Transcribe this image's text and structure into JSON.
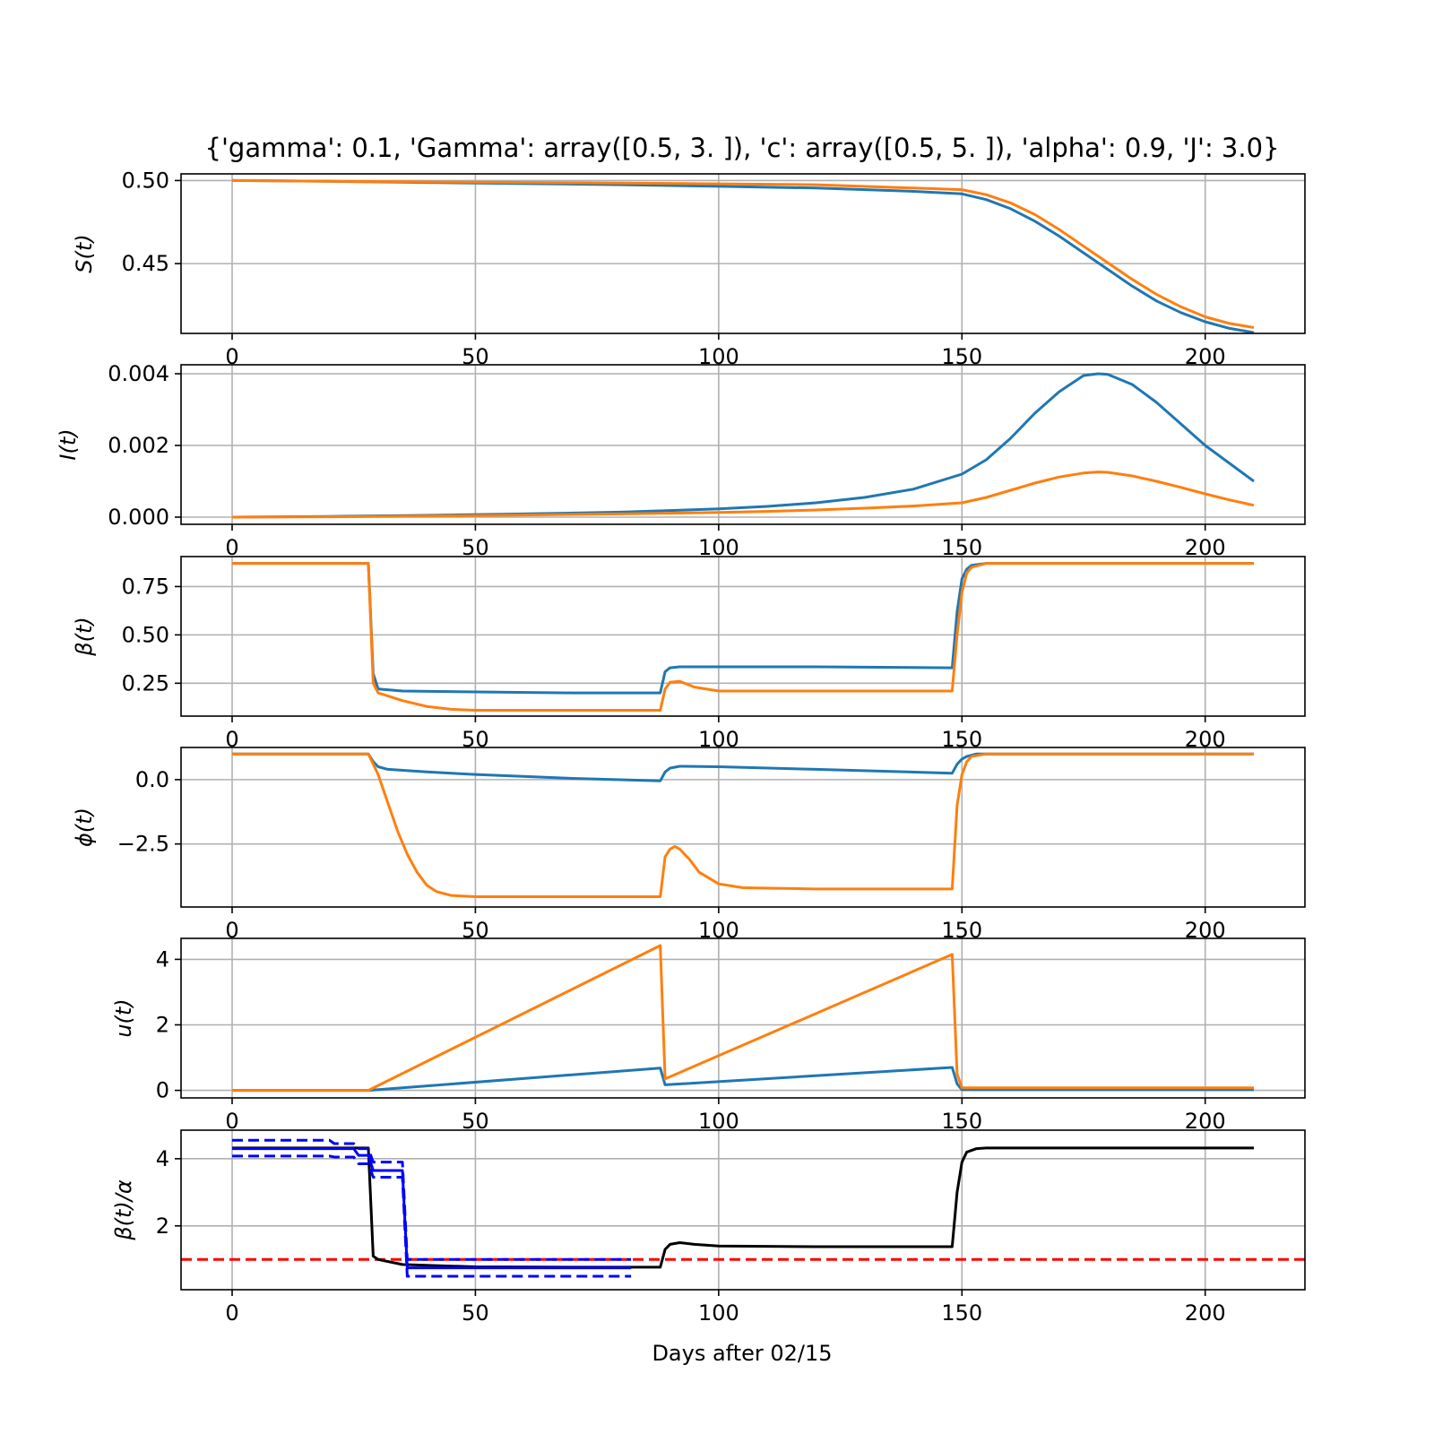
{
  "title": "{'gamma': 0.1, 'Gamma': array([0.5, 3. ]), 'c': array([0.5, 5. ]), 'alpha': 0.9, 'J': 3.0}",
  "xlabel": "Days after 02/15",
  "colors": {
    "blue": "#1f77b4",
    "orange": "#ff7f0e",
    "black": "#000000",
    "band": "#0000ff",
    "threshold": "#ff0000",
    "grid": "#b0b0b0"
  },
  "chart_data": [
    {
      "type": "line",
      "ylabel": "S(t)",
      "ylim": [
        0.408,
        0.504
      ],
      "xlim": [
        -10.5,
        220.5
      ],
      "xticks": [
        0,
        50,
        100,
        150,
        200
      ],
      "xtick_labels": [
        "0",
        "50",
        "100",
        "150",
        "200"
      ],
      "yticks": [
        0.45,
        0.5
      ],
      "ytick_labels": [
        "0.45",
        "0.50"
      ],
      "grid": true,
      "series": [
        {
          "color": "blue",
          "x": [
            0,
            20,
            50,
            80,
            100,
            120,
            140,
            150,
            155,
            160,
            165,
            170,
            175,
            180,
            185,
            190,
            195,
            200,
            205,
            210
          ],
          "y": [
            0.5,
            0.4995,
            0.4985,
            0.4975,
            0.4965,
            0.4955,
            0.4935,
            0.492,
            0.4885,
            0.483,
            0.4755,
            0.4665,
            0.4565,
            0.4465,
            0.4365,
            0.4275,
            0.4205,
            0.415,
            0.411,
            0.4085
          ]
        },
        {
          "color": "orange",
          "x": [
            0,
            20,
            50,
            80,
            100,
            120,
            140,
            150,
            155,
            160,
            165,
            170,
            175,
            180,
            185,
            190,
            195,
            200,
            205,
            210
          ],
          "y": [
            0.5,
            0.4995,
            0.499,
            0.4985,
            0.498,
            0.4975,
            0.4955,
            0.4945,
            0.4915,
            0.4865,
            0.4795,
            0.4705,
            0.4605,
            0.4505,
            0.4405,
            0.4315,
            0.424,
            0.418,
            0.414,
            0.4115
          ]
        }
      ]
    },
    {
      "type": "line",
      "ylabel": "I(t)",
      "ylim": [
        -0.0002,
        0.00425
      ],
      "xlim": [
        -10.5,
        220.5
      ],
      "xticks": [
        0,
        50,
        100,
        150,
        200
      ],
      "xtick_labels": [
        "0",
        "50",
        "100",
        "150",
        "200"
      ],
      "yticks": [
        0.0,
        0.002,
        0.004
      ],
      "ytick_labels": [
        "0.000",
        "0.002",
        "0.004"
      ],
      "grid": true,
      "series": [
        {
          "color": "blue",
          "x": [
            0,
            20,
            40,
            60,
            80,
            100,
            110,
            120,
            130,
            140,
            150,
            155,
            160,
            165,
            170,
            175,
            178,
            180,
            185,
            190,
            195,
            200,
            205,
            210
          ],
          "y": [
            0.0,
            2e-05,
            5e-05,
            9e-05,
            0.00014,
            0.00023,
            0.0003,
            0.0004,
            0.00055,
            0.00078,
            0.0012,
            0.0016,
            0.0022,
            0.0029,
            0.0035,
            0.00395,
            0.004,
            0.00398,
            0.0037,
            0.0032,
            0.0026,
            0.002,
            0.0015,
            0.001
          ]
        },
        {
          "color": "orange",
          "x": [
            0,
            20,
            40,
            60,
            80,
            100,
            110,
            120,
            130,
            140,
            150,
            155,
            160,
            165,
            170,
            175,
            178,
            180,
            185,
            190,
            195,
            200,
            205,
            210
          ],
          "y": [
            0.0,
            1e-05,
            3e-05,
            6e-05,
            9e-05,
            0.00013,
            0.00016,
            0.0002,
            0.00025,
            0.00031,
            0.0004,
            0.00055,
            0.00075,
            0.00095,
            0.00112,
            0.00123,
            0.00126,
            0.00125,
            0.00115,
            0.001,
            0.00083,
            0.00065,
            0.00048,
            0.00033
          ]
        }
      ]
    },
    {
      "type": "line",
      "ylabel": "β(t)",
      "ylim": [
        0.08,
        0.905
      ],
      "xlim": [
        -10.5,
        220.5
      ],
      "xticks": [
        0,
        50,
        100,
        150,
        200
      ],
      "xtick_labels": [
        "0",
        "50",
        "100",
        "150",
        "200"
      ],
      "yticks": [
        0.25,
        0.5,
        0.75
      ],
      "ytick_labels": [
        "0.25",
        "0.50",
        "0.75"
      ],
      "grid": true,
      "series": [
        {
          "color": "blue",
          "x": [
            0,
            28,
            29,
            30,
            35,
            50,
            70,
            88,
            89,
            90,
            92,
            100,
            120,
            148,
            149,
            150,
            151,
            152,
            155,
            210
          ],
          "y": [
            0.87,
            0.87,
            0.3,
            0.22,
            0.21,
            0.205,
            0.2,
            0.2,
            0.31,
            0.33,
            0.335,
            0.335,
            0.335,
            0.33,
            0.62,
            0.79,
            0.84,
            0.86,
            0.87,
            0.87
          ]
        },
        {
          "color": "orange",
          "x": [
            0,
            28,
            29,
            30,
            35,
            40,
            45,
            50,
            70,
            88,
            89,
            90,
            92,
            95,
            100,
            120,
            148,
            149,
            150,
            151,
            152,
            155,
            210
          ],
          "y": [
            0.87,
            0.87,
            0.25,
            0.2,
            0.16,
            0.13,
            0.115,
            0.11,
            0.11,
            0.11,
            0.22,
            0.255,
            0.26,
            0.23,
            0.21,
            0.21,
            0.21,
            0.5,
            0.72,
            0.82,
            0.85,
            0.87,
            0.87
          ]
        }
      ]
    },
    {
      "type": "line",
      "ylabel": "ϕ(t)",
      "ylim": [
        -4.95,
        1.25
      ],
      "xlim": [
        -10.5,
        220.5
      ],
      "xticks": [
        0,
        50,
        100,
        150,
        200
      ],
      "xtick_labels": [
        "0",
        "50",
        "100",
        "150",
        "200"
      ],
      "yticks": [
        -2.5,
        0.0
      ],
      "ytick_labels": [
        "−2.5",
        "0.0"
      ],
      "grid": true,
      "series": [
        {
          "color": "blue",
          "x": [
            0,
            28,
            29,
            30,
            32,
            40,
            50,
            70,
            88,
            89,
            90,
            92,
            100,
            120,
            148,
            149,
            150,
            151,
            153,
            210
          ],
          "y": [
            1.0,
            1.0,
            0.7,
            0.5,
            0.4,
            0.3,
            0.2,
            0.05,
            -0.05,
            0.3,
            0.45,
            0.52,
            0.5,
            0.4,
            0.25,
            0.6,
            0.8,
            0.9,
            1.0,
            1.0
          ]
        },
        {
          "color": "orange",
          "x": [
            0,
            28,
            30,
            32,
            34,
            36,
            38,
            40,
            42,
            45,
            50,
            60,
            88,
            89,
            90,
            91,
            92,
            94,
            96,
            100,
            105,
            120,
            148,
            149,
            150,
            151,
            152,
            155,
            210
          ],
          "y": [
            1.0,
            1.0,
            0.2,
            -0.9,
            -2.0,
            -2.9,
            -3.6,
            -4.1,
            -4.35,
            -4.5,
            -4.55,
            -4.55,
            -4.55,
            -3.0,
            -2.7,
            -2.6,
            -2.7,
            -3.1,
            -3.6,
            -4.05,
            -4.2,
            -4.25,
            -4.25,
            -1.0,
            0.2,
            0.7,
            0.9,
            1.0,
            1.0
          ]
        }
      ]
    },
    {
      "type": "line",
      "ylabel": "u(t)",
      "ylim": [
        -0.23,
        4.64
      ],
      "xlim": [
        -10.5,
        220.5
      ],
      "xticks": [
        0,
        50,
        100,
        150,
        200
      ],
      "xtick_labels": [
        "0",
        "50",
        "100",
        "150",
        "200"
      ],
      "yticks": [
        0,
        2,
        4
      ],
      "ytick_labels": [
        "0",
        "2",
        "4"
      ],
      "grid": true,
      "series": [
        {
          "color": "blue",
          "x": [
            0,
            28,
            88,
            89,
            148,
            149,
            150,
            210
          ],
          "y": [
            0.0,
            0.0,
            0.68,
            0.17,
            0.7,
            0.2,
            0.02,
            0.02
          ]
        },
        {
          "color": "orange",
          "x": [
            0,
            28,
            88,
            89,
            148,
            149,
            150,
            210
          ],
          "y": [
            0.0,
            0.0,
            4.42,
            0.35,
            4.15,
            0.5,
            0.08,
            0.08
          ]
        }
      ]
    },
    {
      "type": "line",
      "ylabel": "β(t)/α",
      "ylim": [
        0.1,
        4.85
      ],
      "xlim": [
        -10.5,
        220.5
      ],
      "xticks": [
        0,
        50,
        100,
        150,
        200
      ],
      "xtick_labels": [
        "0",
        "50",
        "100",
        "150",
        "200"
      ],
      "yticks": [
        2,
        4
      ],
      "ytick_labels": [
        "2",
        "4"
      ],
      "grid": true,
      "hline": {
        "y": 1.0,
        "color": "threshold",
        "style": "dashed"
      },
      "series": [
        {
          "color": "black",
          "x": [
            0,
            28,
            29,
            30,
            35,
            50,
            70,
            88,
            89,
            90,
            92,
            95,
            100,
            120,
            148,
            149,
            150,
            151,
            153,
            155,
            210
          ],
          "y": [
            4.32,
            4.32,
            1.1,
            1.0,
            0.85,
            0.78,
            0.77,
            0.77,
            1.3,
            1.45,
            1.5,
            1.45,
            1.4,
            1.38,
            1.38,
            3.0,
            3.9,
            4.2,
            4.3,
            4.32,
            4.32
          ]
        },
        {
          "color": "band",
          "x": [
            0,
            20,
            21,
            25,
            26,
            28,
            29,
            35,
            36,
            82
          ],
          "y": [
            4.3,
            4.3,
            4.3,
            4.3,
            4.1,
            4.1,
            3.65,
            3.65,
            0.75,
            0.75
          ]
        },
        {
          "color": "band",
          "style": "dashed",
          "x": [
            0,
            20,
            21,
            25,
            26,
            28,
            29,
            35,
            36,
            82
          ],
          "y": [
            4.55,
            4.55,
            4.45,
            4.45,
            4.3,
            4.3,
            3.9,
            3.9,
            1.0,
            1.0
          ]
        },
        {
          "color": "band",
          "style": "dashed",
          "x": [
            0,
            20,
            21,
            25,
            26,
            28,
            29,
            35,
            36,
            82
          ],
          "y": [
            4.08,
            4.08,
            4.05,
            4.05,
            3.85,
            3.85,
            3.45,
            3.45,
            0.5,
            0.5
          ]
        }
      ]
    }
  ]
}
